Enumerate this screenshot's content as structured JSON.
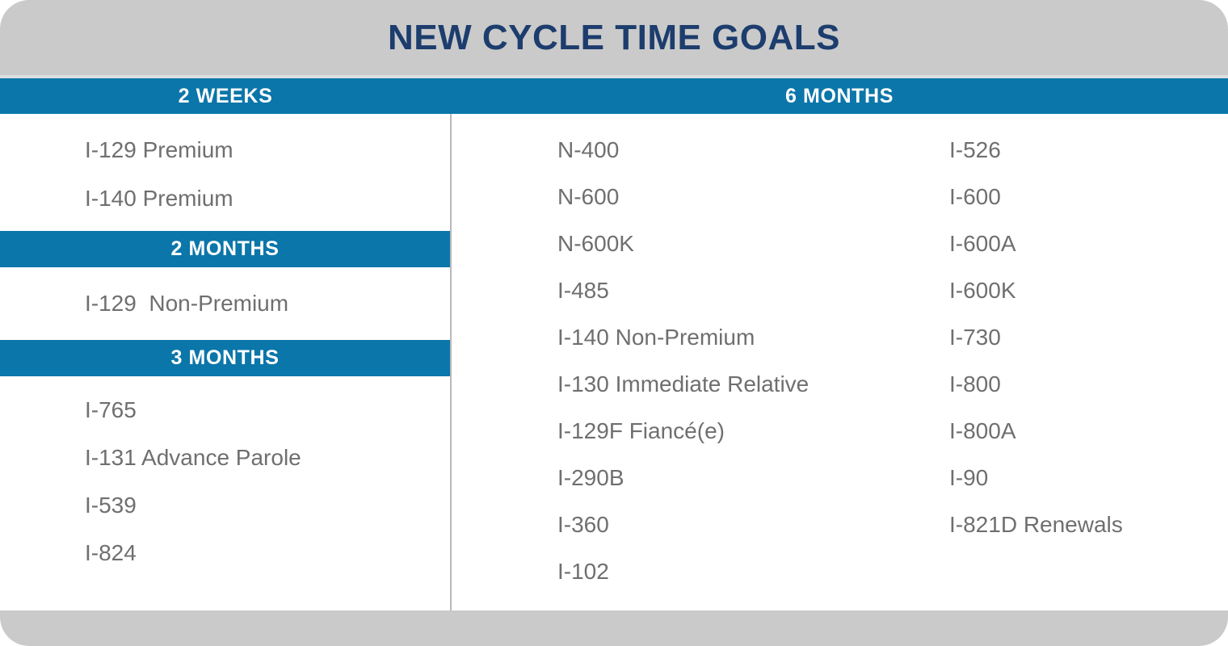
{
  "title": "NEW CYCLE TIME GOALS",
  "colors": {
    "blue": "#0b76a9",
    "navy": "#1c3d6d",
    "header_gray": "#cacaca",
    "item_text": "#6f6f6f",
    "divider": "#b9b9b9"
  },
  "left_column": {
    "sections": [
      {
        "header": "2 WEEKS",
        "items": [
          "I-129 Premium",
          "I-140 Premium"
        ]
      },
      {
        "header": "2 MONTHS",
        "items": [
          "I-129  Non-Premium"
        ]
      },
      {
        "header": "3 MONTHS",
        "items": [
          "I-765",
          "I-131 Advance Parole",
          "I-539",
          "I-824"
        ]
      }
    ]
  },
  "right_section": {
    "header": "6 MONTHS",
    "columns": [
      [
        "N-400",
        "N-600",
        "N-600K",
        "I-485",
        "I-140 Non-Premium",
        "I-130 Immediate Relative",
        "I-129F Fiancé(e)",
        "I-290B",
        "I-360",
        "I-102"
      ],
      [
        "I-526",
        "I-600",
        "I-600A",
        "I-600K",
        "I-730",
        "I-800",
        "I-800A",
        "I-90",
        "I-821D Renewals"
      ]
    ]
  }
}
